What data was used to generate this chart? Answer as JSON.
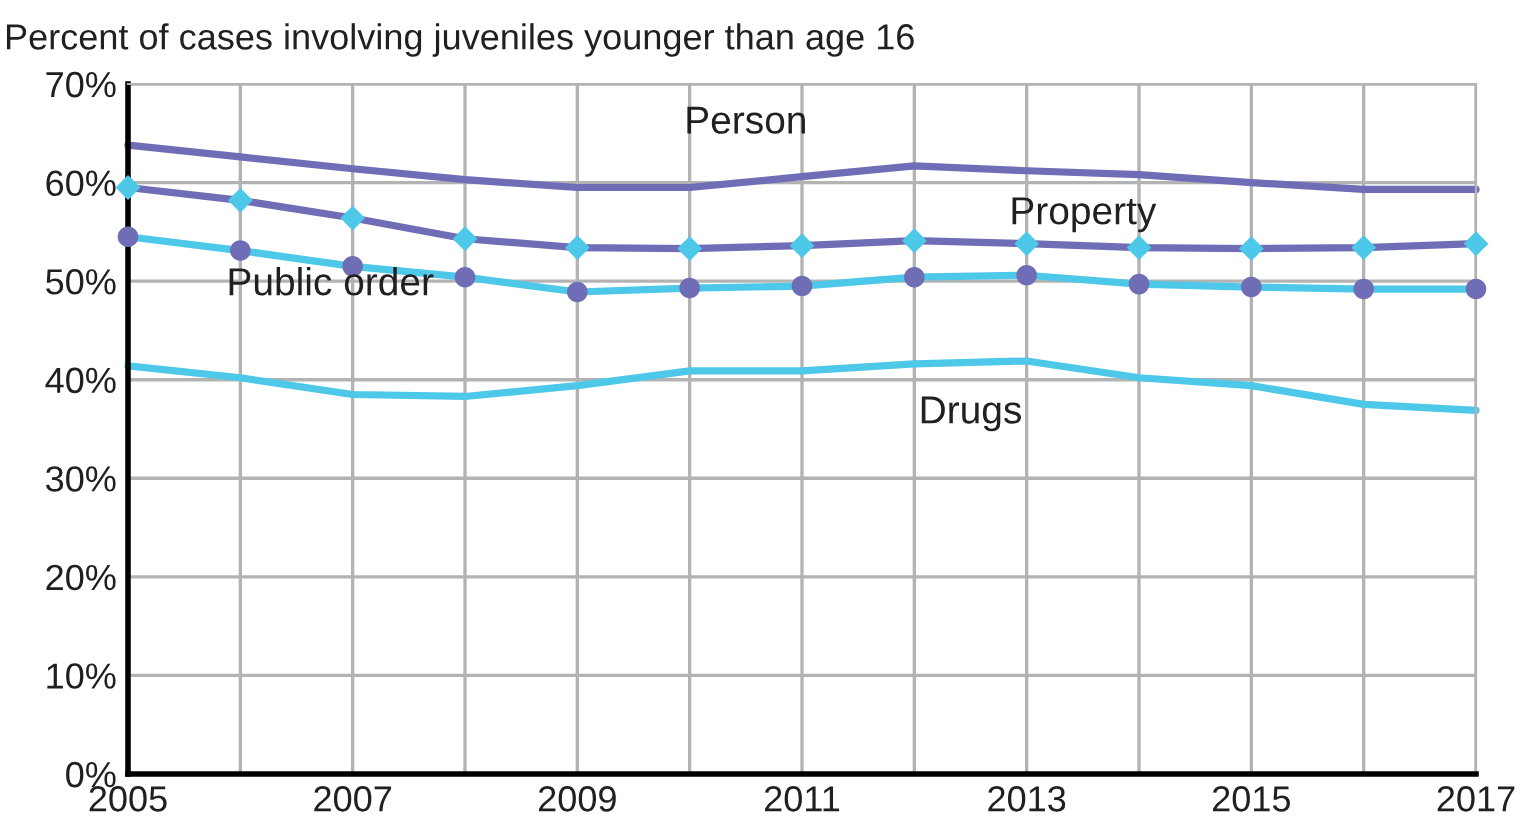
{
  "chart_data": {
    "type": "line",
    "title": "Percent of cases involving juveniles younger than age 16",
    "x": [
      2005,
      2006,
      2007,
      2008,
      2009,
      2010,
      2011,
      2012,
      2013,
      2014,
      2015,
      2016,
      2017
    ],
    "series": [
      {
        "name": "Person",
        "color": "#6f6db5",
        "marker": "none",
        "values": [
          63.8,
          62.6,
          61.4,
          60.3,
          59.5,
          59.5,
          60.6,
          61.7,
          61.2,
          60.8,
          60.0,
          59.3,
          59.3
        ]
      },
      {
        "name": "Property",
        "color": "#6f6db5",
        "colors": [
          "#4dc8e8",
          "#4dc8e8",
          "#4dc8e8",
          "#4dc8e8",
          "#4dc8e8",
          "#4dc8e8",
          "#4dc8e8",
          "#4dc8e8",
          "#4dc8e8",
          "#4dc8e8",
          "#4dc8e8",
          "#4dc8e8",
          "#4dc8e8"
        ],
        "marker": "diamond",
        "values": [
          59.5,
          58.2,
          56.4,
          54.3,
          53.4,
          53.3,
          53.6,
          54.1,
          53.8,
          53.4,
          53.3,
          53.4,
          53.8
        ]
      },
      {
        "name": "Public order",
        "color": "#4dc8e8",
        "colors": [
          "#6f6db5",
          "#6f6db5",
          "#6f6db5",
          "#6f6db5",
          "#6f6db5",
          "#6f6db5",
          "#6f6db5",
          "#6f6db5",
          "#6f6db5",
          "#6f6db5",
          "#6f6db5",
          "#6f6db5",
          "#6f6db5"
        ],
        "marker": "circle",
        "values": [
          54.5,
          53.1,
          51.5,
          50.4,
          48.9,
          49.3,
          49.5,
          50.4,
          50.6,
          49.7,
          49.4,
          49.2,
          49.2
        ]
      },
      {
        "name": "Drugs",
        "color": "#4dc8e8",
        "marker": "none",
        "values": [
          41.4,
          40.2,
          38.5,
          38.3,
          39.4,
          40.9,
          40.9,
          41.6,
          41.9,
          40.2,
          39.4,
          37.5,
          36.9
        ]
      }
    ],
    "xlim": [
      2005,
      2017
    ],
    "ylim": [
      0,
      70
    ],
    "xticks": [
      2005,
      {
        "value": 2006,
        "label": null
      },
      2007,
      {
        "value": 2008,
        "label": null
      },
      2009,
      {
        "value": 2010,
        "label": null
      },
      2011,
      {
        "value": 2012,
        "label": null
      },
      2013,
      {
        "value": 2014,
        "label": null
      },
      2015,
      {
        "value": 2016,
        "label": null
      },
      2017
    ],
    "yticks": [
      {
        "value": 0,
        "label": "0%"
      },
      {
        "value": 10,
        "label": "10%"
      },
      {
        "value": 20,
        "label": "20%"
      },
      {
        "value": 30,
        "label": "30%"
      },
      {
        "value": 40,
        "label": "40%"
      },
      {
        "value": 50,
        "label": "50%"
      },
      {
        "value": 60,
        "label": "60%"
      },
      {
        "value": 70,
        "label": "70%"
      }
    ],
    "grid": true,
    "legend": false,
    "line_style": "solid"
  }
}
